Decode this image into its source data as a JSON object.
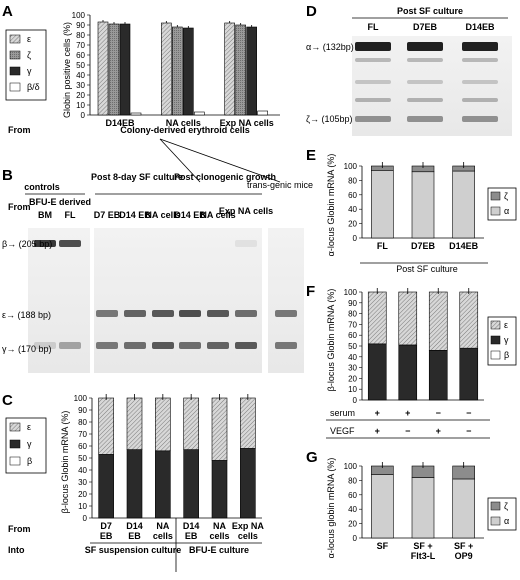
{
  "colors": {
    "hatch_light": "#c8c8c8",
    "dark": "#2a2a2a",
    "mid": "#8c8c8c",
    "light_gray": "#cfcfcf",
    "white": "#ffffff"
  },
  "panels": {
    "A": {
      "label": "A",
      "legend": [
        "ε",
        "ζ",
        "γ",
        "β/δ"
      ],
      "from_label": "From",
      "categories": [
        "D14EB",
        "NA cells",
        "Exp NA cells"
      ],
      "subcaption": "Colony-derived erythroid cells"
    },
    "B": {
      "label": "B",
      "groups": [
        "controls",
        "Post 8-day SF culture",
        "Post clonogenic growth",
        "trans-genic mice"
      ],
      "from_label": "From",
      "lanes": [
        "BFU-E derived",
        "BM",
        "FL",
        "D7 EB",
        "D14 EB",
        "NA cells",
        "D14 EB",
        "NA cells",
        "Exp NA cells"
      ],
      "bands": [
        "β→ (205 bp)",
        "ε→ (188 bp)",
        "γ→ (170 bp)"
      ]
    },
    "C": {
      "label": "C",
      "legend": [
        "ε",
        "γ",
        "β"
      ],
      "from_label": "From",
      "into_label": "Into",
      "categories": [
        "D7 EB",
        "D14 EB",
        "NA cells",
        "D14 EB",
        "NA cells",
        "Exp NA cells"
      ],
      "groups": [
        "SF suspension culture",
        "BFU-E culture"
      ]
    },
    "D": {
      "label": "D",
      "title": "Post SF culture",
      "lanes": [
        "FL",
        "D7EB",
        "D14EB"
      ],
      "bands": [
        "α→ (132bp)",
        "ζ→ (105bp)"
      ]
    },
    "E": {
      "label": "E",
      "legend": [
        "ζ",
        "α"
      ],
      "categories": [
        "FL",
        "D7EB",
        "D14EB"
      ],
      "caption": "Post SF culture"
    },
    "F": {
      "label": "F",
      "legend": [
        "ε",
        "γ",
        "β"
      ],
      "rows": [
        {
          "name": "serum",
          "values": [
            "+",
            "+",
            "−",
            "−"
          ]
        },
        {
          "name": "VEGF",
          "values": [
            "+",
            "−",
            "+",
            "−"
          ]
        }
      ]
    },
    "G": {
      "label": "G",
      "legend": [
        "ζ",
        "α"
      ],
      "categories": [
        "SF",
        "SF + Flt3-L",
        "SF + OP9"
      ]
    }
  },
  "chart_data": [
    {
      "panel": "A",
      "type": "bar",
      "categories": [
        "D14EB",
        "NA cells",
        "Exp NA cells"
      ],
      "ylabel": "Globin positive cells (%)",
      "ylim": [
        0,
        100
      ],
      "yticks": [
        "0",
        "10",
        "20",
        "30",
        "40",
        "50",
        "60",
        "70",
        "80",
        "90",
        "100"
      ],
      "series": [
        {
          "name": "ε",
          "values": [
            93,
            92,
            92
          ]
        },
        {
          "name": "ζ",
          "values": [
            91,
            88,
            90
          ]
        },
        {
          "name": "γ",
          "values": [
            91,
            87,
            88
          ]
        },
        {
          "name": "β/δ",
          "values": [
            2,
            3,
            4
          ]
        }
      ]
    },
    {
      "panel": "C",
      "type": "bar",
      "categories": [
        "D7 EB",
        "D14 EB",
        "NA cells",
        "D14 EB",
        "NA cells",
        "Exp NA cells"
      ],
      "ylabel": "β-locus Globin mRNA (%)",
      "ylim": [
        0,
        100
      ],
      "yticks": [
        "0",
        "10",
        "20",
        "30",
        "40",
        "50",
        "60",
        "70",
        "80",
        "90",
        "100"
      ],
      "series": [
        {
          "name": "β",
          "values": [
            0,
            0,
            0,
            0,
            0,
            0
          ]
        },
        {
          "name": "γ",
          "values": [
            53,
            57,
            56,
            57,
            48,
            58
          ]
        },
        {
          "name": "ε",
          "values": [
            47,
            43,
            44,
            43,
            52,
            42
          ]
        }
      ]
    },
    {
      "panel": "E",
      "type": "bar",
      "categories": [
        "FL",
        "D7EB",
        "D14EB"
      ],
      "ylabel": "α-locus Globin mRNA (%)",
      "ylim": [
        0,
        100
      ],
      "yticks": [
        "0",
        "20",
        "40",
        "60",
        "80",
        "100"
      ],
      "series": [
        {
          "name": "α",
          "values": [
            94,
            92,
            93
          ]
        },
        {
          "name": "ζ",
          "values": [
            6,
            8,
            7
          ]
        }
      ]
    },
    {
      "panel": "F",
      "type": "bar",
      "categories": [
        "serum+ VEGF+",
        "serum+ VEGF−",
        "serum− VEGF+",
        "serum− VEGF−"
      ],
      "ylabel": "β-locus Globin mRNA (%)",
      "ylim": [
        0,
        100
      ],
      "yticks": [
        "0",
        "10",
        "20",
        "30",
        "40",
        "50",
        "60",
        "70",
        "80",
        "90",
        "100"
      ],
      "series": [
        {
          "name": "β",
          "values": [
            0,
            0,
            0,
            0
          ]
        },
        {
          "name": "γ",
          "values": [
            52,
            51,
            46,
            48
          ]
        },
        {
          "name": "ε",
          "values": [
            48,
            49,
            54,
            52
          ]
        }
      ]
    },
    {
      "panel": "G",
      "type": "bar",
      "categories": [
        "SF",
        "SF + Flt3-L",
        "SF + OP9"
      ],
      "ylabel": "α-locus globin mRNA (%)",
      "ylim": [
        0,
        100
      ],
      "yticks": [
        "0",
        "20",
        "40",
        "60",
        "80",
        "100"
      ],
      "series": [
        {
          "name": "α",
          "values": [
            88,
            84,
            82
          ]
        },
        {
          "name": "ζ",
          "values": [
            12,
            16,
            18
          ]
        }
      ]
    }
  ]
}
